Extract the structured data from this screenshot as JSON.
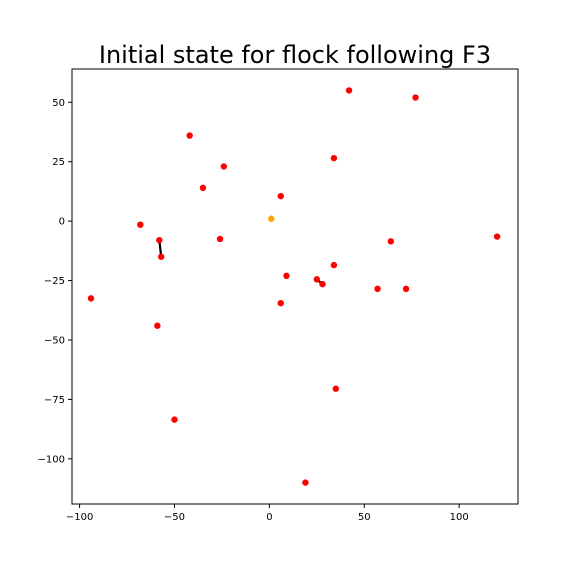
{
  "chart_data": {
    "type": "scatter",
    "title": "Initial state for flock following F3",
    "xlabel": "",
    "ylabel": "",
    "xlim": [
      -104,
      131
    ],
    "ylim": [
      -119,
      64
    ],
    "grid": false,
    "x_ticks": [
      -100,
      -50,
      0,
      50,
      100
    ],
    "y_ticks": [
      -100,
      -75,
      -50,
      -25,
      0,
      25,
      50
    ],
    "x_tick_labels": [
      "−100",
      "−50",
      "0",
      "50",
      "100"
    ],
    "y_tick_labels": [
      "−100",
      "−75",
      "−50",
      "−25",
      "0",
      "25",
      "50"
    ],
    "colors": {
      "agent": "#ff0000",
      "leader": "#ffa500",
      "link": "#000000"
    },
    "leader": {
      "x": 1,
      "y": 1
    },
    "points": [
      {
        "x": 42,
        "y": 55
      },
      {
        "x": 77,
        "y": 52
      },
      {
        "x": -42,
        "y": 36
      },
      {
        "x": 34,
        "y": 26.5
      },
      {
        "x": -24,
        "y": 23
      },
      {
        "x": -35,
        "y": 14
      },
      {
        "x": 6,
        "y": 10.5
      },
      {
        "x": -68,
        "y": -1.5
      },
      {
        "x": -58,
        "y": -8
      },
      {
        "x": -26,
        "y": -7.5
      },
      {
        "x": 64,
        "y": -8.5
      },
      {
        "x": 120,
        "y": -6.5
      },
      {
        "x": -57,
        "y": -15
      },
      {
        "x": 34,
        "y": -18.5
      },
      {
        "x": 9,
        "y": -23
      },
      {
        "x": 25,
        "y": -24.5
      },
      {
        "x": 28,
        "y": -26.5
      },
      {
        "x": 57,
        "y": -28.5
      },
      {
        "x": 72,
        "y": -28.5
      },
      {
        "x": -94,
        "y": -32.5
      },
      {
        "x": 6,
        "y": -34.5
      },
      {
        "x": -59,
        "y": -44
      },
      {
        "x": 35,
        "y": -70.5
      },
      {
        "x": -50,
        "y": -83.5
      },
      {
        "x": 19,
        "y": -110
      }
    ],
    "links": [
      {
        "x1": -58,
        "y1": -8,
        "x2": -57,
        "y2": -15
      },
      {
        "x1": 25,
        "y1": -24.5,
        "x2": 28,
        "y2": -26.5
      }
    ]
  }
}
